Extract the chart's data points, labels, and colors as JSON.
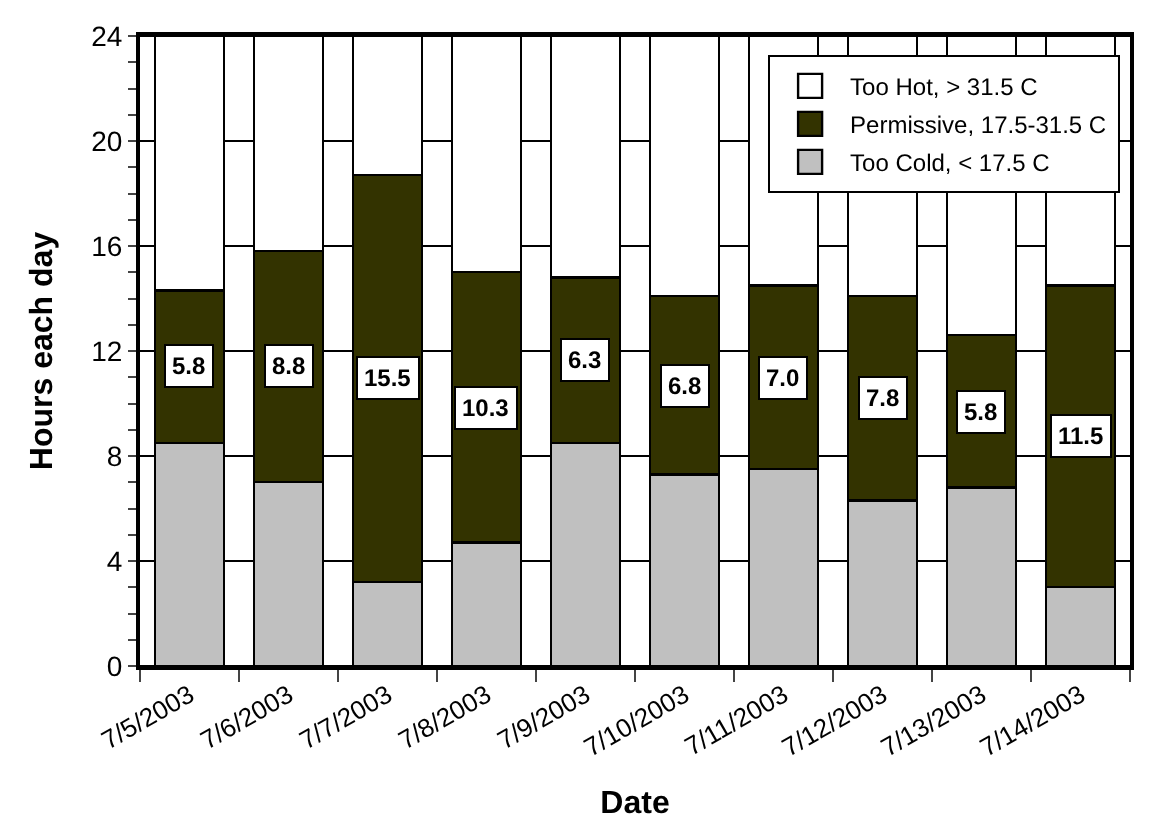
{
  "chart_data": {
    "type": "bar",
    "stacked": true,
    "xlabel": "Date",
    "ylabel": "Hours each day",
    "categories": [
      "7/5/2003",
      "7/6/2003",
      "7/7/2003",
      "7/8/2003",
      "7/9/2003",
      "7/10/2003",
      "7/11/2003",
      "7/12/2003",
      "7/13/2003",
      "7/14/2003"
    ],
    "series": [
      {
        "name": "Too Cold, < 17.5 C",
        "color": "#c0c0c0",
        "values": [
          8.5,
          7.0,
          3.2,
          4.7,
          8.5,
          7.3,
          7.5,
          6.3,
          6.8,
          3.0
        ]
      },
      {
        "name": "Permissive, 17.5-31.5 C",
        "color": "#333300",
        "values": [
          5.8,
          8.8,
          15.5,
          10.3,
          6.3,
          6.8,
          7.0,
          7.8,
          5.8,
          11.5
        ],
        "value_labels": [
          "5.8",
          "8.8",
          "15.5",
          "10.3",
          "6.3",
          "6.8",
          "7.0",
          "7.8",
          "5.8",
          "11.5"
        ]
      },
      {
        "name": "Too Hot, > 31.5 C",
        "color": "#ffffff",
        "values": [
          9.7,
          8.2,
          5.3,
          9.0,
          9.2,
          9.9,
          9.5,
          9.9,
          11.4,
          9.5
        ]
      }
    ],
    "ylim": [
      0,
      24
    ],
    "yticks": [
      0,
      {
        "value": 1,
        "label": null
      },
      {
        "value": 2,
        "label": null
      },
      {
        "value": 3,
        "label": null
      },
      4,
      {
        "value": 5,
        "label": null
      },
      {
        "value": 6,
        "label": null
      },
      {
        "value": 7,
        "label": null
      },
      8,
      {
        "value": 9,
        "label": null
      },
      {
        "value": 10,
        "label": null
      },
      {
        "value": 11,
        "label": null
      },
      12,
      {
        "value": 13,
        "label": null
      },
      {
        "value": 14,
        "label": null
      },
      {
        "value": 15,
        "label": null
      },
      16,
      {
        "value": 17,
        "label": null
      },
      {
        "value": 18,
        "label": null
      },
      {
        "value": 19,
        "label": null
      },
      20,
      {
        "value": 21,
        "label": null
      },
      {
        "value": 22,
        "label": null
      },
      {
        "value": 23,
        "label": null
      },
      24
    ],
    "grid": "y",
    "legend": "top right"
  }
}
